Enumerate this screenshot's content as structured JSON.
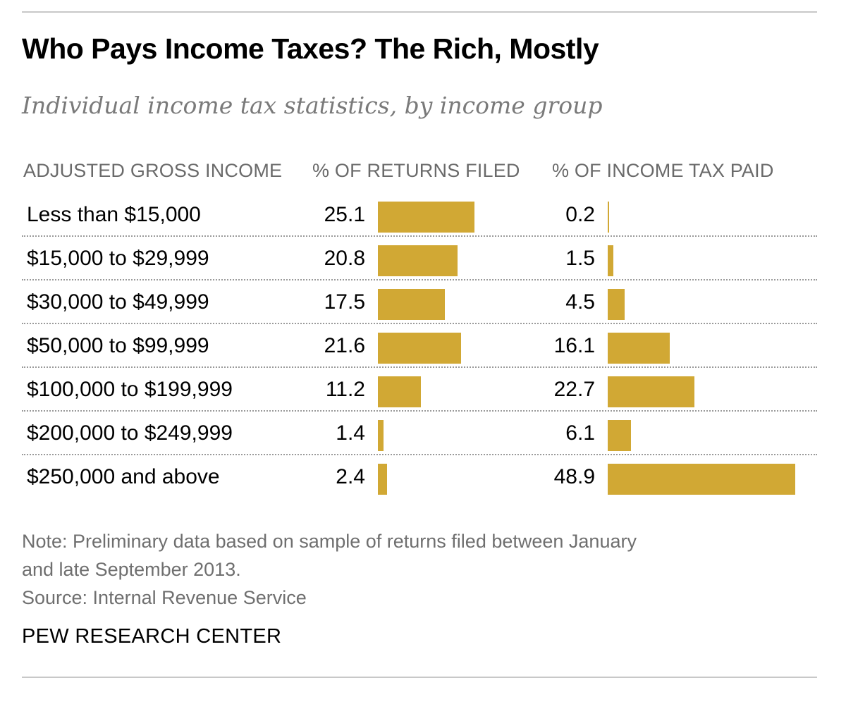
{
  "title": "Who Pays Income Taxes? The Rich, Mostly",
  "subtitle": "Individual income tax statistics, by income group",
  "columns": {
    "income": "ADJUSTED GROSS INCOME",
    "returns": "% OF RETURNS FILED",
    "tax": "% OF INCOME TAX PAID"
  },
  "chart_data": {
    "type": "bar",
    "categories": [
      "Less than $15,000",
      "$15,000 to $29,999",
      "$30,000 to $49,999",
      "$50,000 to $99,999",
      "$100,000 to $199,999",
      "$200,000 to $249,999",
      "$250,000 and above"
    ],
    "series": [
      {
        "name": "% OF RETURNS FILED",
        "values": [
          25.1,
          20.8,
          17.5,
          21.6,
          11.2,
          1.4,
          2.4
        ]
      },
      {
        "name": "% OF INCOME TAX PAID",
        "values": [
          0.2,
          1.5,
          4.5,
          16.1,
          22.7,
          6.1,
          48.9
        ]
      }
    ],
    "colors": {
      "bar": "#d1a834"
    }
  },
  "note_line1": "Note: Preliminary data based on sample of returns filed between January",
  "note_line2": "and late September 2013.",
  "source": "Source: Internal Revenue Service",
  "brand": "PEW RESEARCH CENTER"
}
